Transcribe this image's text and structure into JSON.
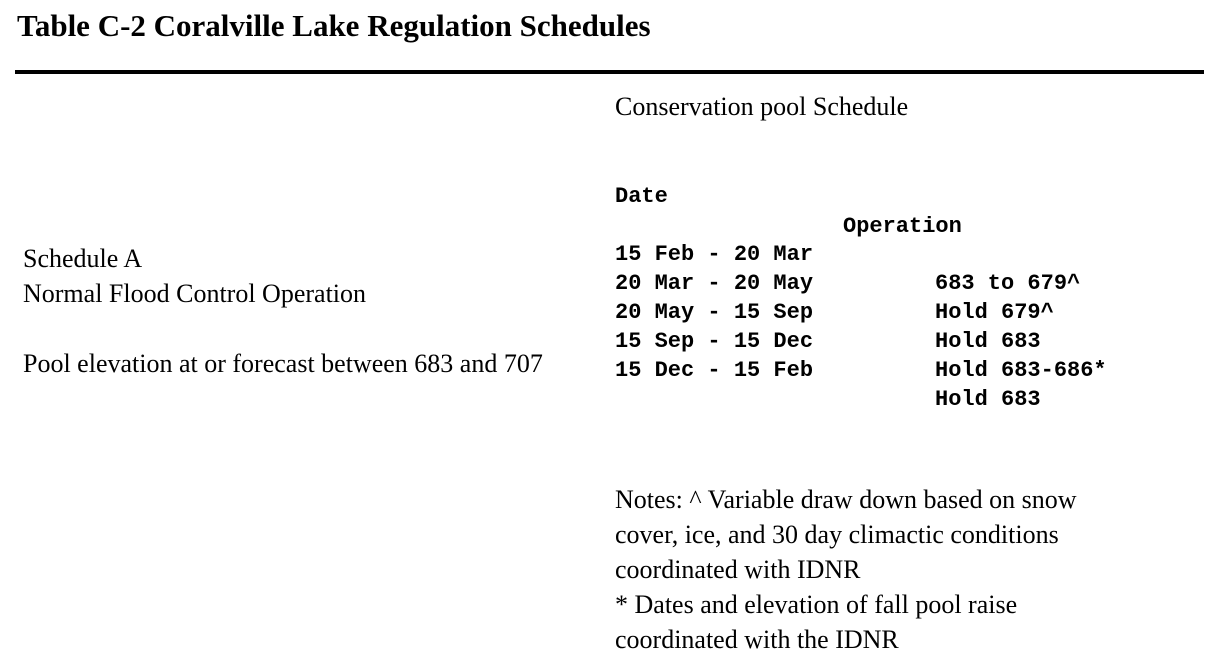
{
  "title": "Table C-2 Coralville Lake Regulation Schedules",
  "left": {
    "line1": "Schedule A",
    "line2": "Normal Flood Control Operation",
    "line3": "Pool elevation at or forecast between 683 and 707"
  },
  "right": {
    "heading": "Conservation pool Schedule",
    "col_date": "Date",
    "col_operation": "Operation",
    "rows": [
      {
        "date": "15 Feb - 20 Mar",
        "operation": "683 to 679^"
      },
      {
        "date": "20 Mar - 20 May",
        "operation": "Hold 679^"
      },
      {
        "date": "20 May - 15 Sep",
        "operation": "Hold 683"
      },
      {
        "date": "15 Sep - 15 Dec",
        "operation": "Hold 683-686*"
      },
      {
        "date": "15 Dec - 15 Feb",
        "operation": "Hold 683"
      }
    ],
    "notes": [
      "Notes: ^ Variable draw down based on snow",
      "cover, ice, and 30 day climactic conditions",
      "coordinated with IDNR",
      "* Dates and elevation of fall pool raise",
      "coordinated with the IDNR"
    ]
  }
}
